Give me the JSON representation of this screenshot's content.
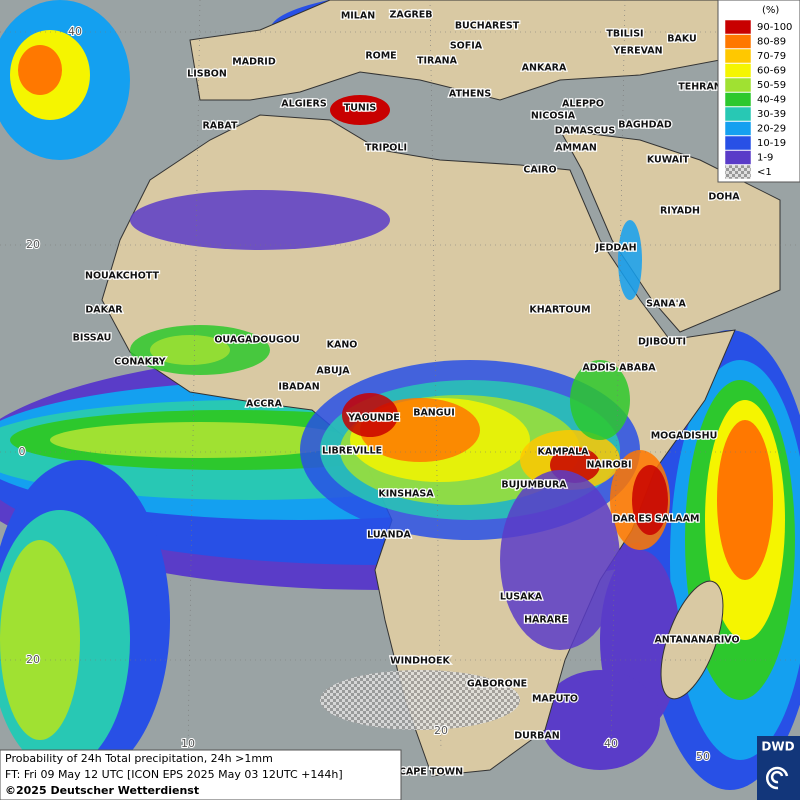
{
  "legend": {
    "unit": "(%)",
    "items": [
      {
        "label": "90-100",
        "color": "#c80000"
      },
      {
        "label": "80-89",
        "color": "#ff7800"
      },
      {
        "label": "70-79",
        "color": "#ffc800"
      },
      {
        "label": "60-69",
        "color": "#f5f500"
      },
      {
        "label": "50-59",
        "color": "#a0e132"
      },
      {
        "label": "40-49",
        "color": "#2dc82d"
      },
      {
        "label": "30-39",
        "color": "#28c8b4"
      },
      {
        "label": "20-29",
        "color": "#14a0f0"
      },
      {
        "label": "10-19",
        "color": "#2850e6"
      },
      {
        "label": "1-9",
        "color": "#5a3cc8"
      },
      {
        "label": "<1",
        "color": "#bdbdbd"
      }
    ]
  },
  "cities": [
    "MILAN",
    "ZAGREB",
    "BUCHAREST",
    "TBILISI",
    "BAKU",
    "MADRID",
    "ROME",
    "SOFIA",
    "YEREVAN",
    "LISBON",
    "TIRANA",
    "ANKARA",
    "TEHRAN",
    "ALGIERS",
    "TUNIS",
    "ATHENS",
    "ALEPPO",
    "RABAT",
    "NICOSIA",
    "BAGHDAD",
    "TRIPOLI",
    "DAMASCUS",
    "AMMAN",
    "KUWAIT",
    "CAIRO",
    "DOHA",
    "RIYADH",
    "JEDDAH",
    "NOUAKCHOTT",
    "SANA'A",
    "DAKAR",
    "KHARTOUM",
    "BISSAU",
    "OUAGADOUGOU",
    "KANO",
    "DJIBOUTI",
    "CONAKRY",
    "ABUJA",
    "ADDIS ABABA",
    "IBADAN",
    "ACCRA",
    "BANGUI",
    "YAOUNDE",
    "MOGADISHU",
    "LIBREVILLE",
    "KAMPALA",
    "NAIROBI",
    "BUJUMBURA",
    "KINSHASA",
    "DAR ES SALAAM",
    "LUANDA",
    "LUSAKA",
    "HARARE",
    "ANTANANARIVO",
    "WINDHOEK",
    "GABORONE",
    "MAPUTO",
    "DURBAN",
    "CAPE TOWN"
  ],
  "latitude_labels": [
    "40",
    "20",
    "0",
    "20"
  ],
  "longitude_labels": [
    "10",
    "20",
    "40",
    "50"
  ],
  "caption": {
    "line1": "Probability of 24h Total precipitation, 24h >1mm",
    "line2": "FT: Fri 09 May 12 UTC [ICON EPS 2025 May 03 12UTC +144h]",
    "copyright": "©2025 Deutscher Wetterdienst"
  },
  "logo": "DWD"
}
